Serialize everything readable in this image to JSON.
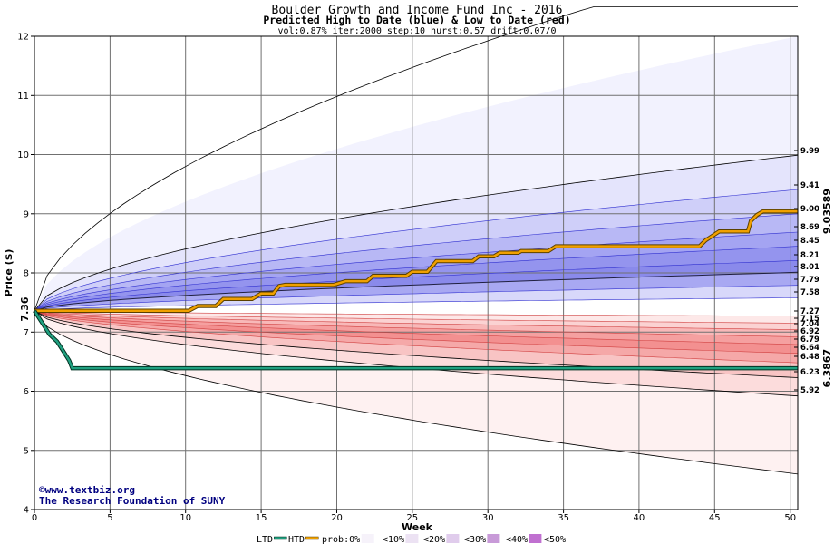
{
  "header": {
    "title": "Boulder Growth and Income Fund Inc - 2016",
    "subtitle": "Predicted High to Date (blue) &  Low to Date (red)",
    "params": "vol:0.87% iter:2000 step:10 hurst:0.57 drift:0.07/0"
  },
  "credit": {
    "line1": "©www.textbiz.org",
    "line2": "The Research Foundation of SUNY"
  },
  "colors": {
    "blue_line": "#3030d0",
    "high_path": "#f0a000",
    "low_path": "#20a080",
    "htd_label": "#a08000",
    "ltd_label": "#006040"
  },
  "chart_data": {
    "type": "area",
    "xlabel": "Week",
    "ylabel": "Price ($)",
    "xlim": [
      0,
      50.5
    ],
    "ylim": [
      4,
      12
    ],
    "x_ticks": [
      0,
      5,
      10,
      15,
      20,
      25,
      30,
      35,
      40,
      45,
      50
    ],
    "y_ticks": [
      4,
      5,
      6,
      7,
      8,
      9,
      10,
      11,
      12
    ],
    "grid": true,
    "start_price": 7.36,
    "start_label": "7.36",
    "quantile_labels": {
      "upper": [
        "9.99",
        "9.41",
        "9.00",
        "8.69",
        "8.45",
        "8.21",
        "8.01",
        "7.79",
        "7.58"
      ],
      "lower": [
        "7.27",
        "7.15",
        "7.04",
        "6.92",
        "6.79",
        "6.64",
        "6.48",
        "6.23",
        "5.92"
      ]
    },
    "upper_quantiles": [
      12.0,
      9.99,
      9.41,
      9.0,
      8.69,
      8.45,
      8.21,
      8.01,
      7.79,
      7.58
    ],
    "lower_quantiles": [
      7.27,
      7.15,
      7.04,
      6.92,
      6.79,
      6.64,
      6.48,
      6.23,
      5.92,
      4.6
    ],
    "band_colors_upper": [
      "#f2f2fe",
      "#e4e4fc",
      "#cfcff9",
      "#b8b8f5",
      "#a4a4f2",
      "#9494ee",
      "#8a8aeb",
      "#a8a8f2",
      "#d8d8fa"
    ],
    "band_colors_lower": [
      "#fde8e8",
      "#fbd2d2",
      "#f8b8b8",
      "#f5a0a0",
      "#f39090",
      "#f5a8a8",
      "#f8c4c4",
      "#fcdcdc",
      "#fef1f1"
    ],
    "htd_series": {
      "name": "HTD",
      "value_label": "9.03589",
      "points": [
        [
          0,
          7.36
        ],
        [
          10.2,
          7.36
        ],
        [
          10.8,
          7.44
        ],
        [
          12.0,
          7.44
        ],
        [
          12.5,
          7.56
        ],
        [
          14.4,
          7.56
        ],
        [
          15.0,
          7.65
        ],
        [
          15.8,
          7.65
        ],
        [
          16.2,
          7.78
        ],
        [
          16.6,
          7.8
        ],
        [
          19.8,
          7.8
        ],
        [
          20.6,
          7.86
        ],
        [
          22.0,
          7.86
        ],
        [
          22.4,
          7.95
        ],
        [
          24.6,
          7.95
        ],
        [
          25.0,
          8.02
        ],
        [
          26.0,
          8.02
        ],
        [
          26.6,
          8.2
        ],
        [
          29.0,
          8.2
        ],
        [
          29.4,
          8.28
        ],
        [
          30.4,
          8.28
        ],
        [
          30.8,
          8.34
        ],
        [
          32.0,
          8.34
        ],
        [
          32.2,
          8.37
        ],
        [
          34.0,
          8.37
        ],
        [
          34.5,
          8.45
        ],
        [
          44.0,
          8.45
        ],
        [
          44.4,
          8.55
        ],
        [
          45.3,
          8.7
        ],
        [
          47.2,
          8.7
        ],
        [
          47.4,
          8.88
        ],
        [
          47.8,
          8.98
        ],
        [
          48.2,
          9.04
        ],
        [
          50.5,
          9.04
        ]
      ]
    },
    "ltd_series": {
      "name": "LTD",
      "value_label": "6.3867",
      "points": [
        [
          0,
          7.36
        ],
        [
          0.6,
          7.12
        ],
        [
          1.0,
          6.96
        ],
        [
          1.5,
          6.84
        ],
        [
          1.9,
          6.68
        ],
        [
          2.3,
          6.52
        ],
        [
          2.5,
          6.39
        ],
        [
          50.5,
          6.39
        ]
      ]
    },
    "legend": {
      "items": [
        "LTD",
        "HTD",
        "prob:0%",
        "<10%",
        "<20%",
        "<30%",
        "<40%",
        "<50%"
      ],
      "swatch_colors": [
        "#20a080",
        "#f0a000",
        "#ffffff",
        "#f6f2fa",
        "#ece2f3",
        "#e0ccec",
        "#c89ad8",
        "#c070d0"
      ]
    }
  }
}
